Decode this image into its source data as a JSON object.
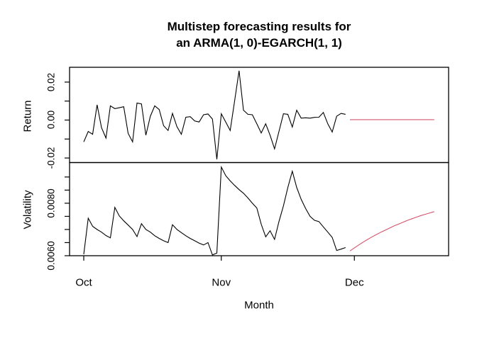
{
  "title": {
    "line1": "Multistep forecasting results for",
    "line2": "an ARMA(1, 0)-EGARCH(1, 1)"
  },
  "x_axis": {
    "label": "Month",
    "ticks": [
      {
        "label": "Oct",
        "day": 0
      },
      {
        "label": "Nov",
        "day": 31
      },
      {
        "label": "Dec",
        "day": 61
      }
    ]
  },
  "colors": {
    "observed": "#000000",
    "forecast": "#d5546c"
  },
  "chart_data": [
    {
      "type": "line",
      "panel": "return",
      "ylabel": "Return",
      "ylim": [
        -0.0224,
        0.0278
      ],
      "yticks": [
        -0.02,
        -0.01,
        0,
        0.01,
        0.02
      ],
      "ytick_labels": [
        "-0.02",
        "",
        "0.00",
        "",
        "0.02"
      ],
      "grid": false,
      "series": [
        {
          "name": "observed",
          "color_key": "observed",
          "x0": 0,
          "values": [
            -0.0115,
            -0.006,
            -0.0075,
            0.008,
            -0.004,
            -0.0095,
            0.0075,
            0.006,
            0.0065,
            0.007,
            -0.007,
            -0.0115,
            0.009,
            0.0085,
            -0.008,
            0.002,
            0.0075,
            0.0055,
            -0.003,
            -0.0055,
            0.0035,
            -0.0035,
            -0.0075,
            0.0015,
            0.0018,
            -0.0005,
            -0.001,
            0.0028,
            0.0032,
            0.0005,
            -0.0207,
            0.0033,
            -0.001,
            -0.0055,
            0.01,
            0.026,
            0.0052,
            0.003,
            0.0028,
            -0.002,
            -0.0068,
            -0.002,
            -0.008,
            -0.0152,
            -0.006,
            0.0033,
            0.003,
            -0.0037,
            0.0052,
            0.001,
            0.0012,
            0.001,
            0.0014,
            0.0015,
            0.004,
            -0.002,
            -0.0063,
            0.002,
            0.0035,
            0.003
          ]
        },
        {
          "name": "forecast",
          "color_key": "forecast",
          "x0": 60,
          "values": [
            0.0002,
            0.0002,
            0.0002,
            0.0002,
            0.0002,
            0.0002,
            0.0002,
            0.0002,
            0.0002,
            0.0002,
            0.0002,
            0.0002,
            0.0002,
            0.0002,
            0.0002,
            0.0002,
            0.0002,
            0.0002,
            0.0002,
            0.0002
          ]
        }
      ]
    },
    {
      "type": "line",
      "panel": "volatility",
      "ylabel": "Volatility",
      "ylim": [
        0.006,
        0.00955
      ],
      "yticks": [
        0.006,
        0.0065,
        0.007,
        0.0075,
        0.008,
        0.0085,
        0.009
      ],
      "ytick_labels": [
        "0.0060",
        "",
        "",
        "",
        "0.0080",
        "",
        ""
      ],
      "grid": false,
      "series": [
        {
          "name": "observed",
          "color_key": "observed",
          "x0": 0,
          "values": [
            0.00605,
            0.00743,
            0.00712,
            0.007,
            0.0069,
            0.00677,
            0.00668,
            0.00784,
            0.00752,
            0.00733,
            0.00717,
            0.007,
            0.00673,
            0.00722,
            0.007,
            0.0069,
            0.00676,
            0.00666,
            0.00657,
            0.0065,
            0.00718,
            0.007,
            0.00688,
            0.00676,
            0.00666,
            0.00657,
            0.00648,
            0.00641,
            0.0065,
            0.00603,
            0.0061,
            0.00938,
            0.00905,
            0.00885,
            0.00868,
            0.00852,
            0.00838,
            0.0082,
            0.008,
            0.00782,
            0.0072,
            0.00672,
            0.00695,
            0.00662,
            0.0073,
            0.0079,
            0.0086,
            0.00922,
            0.0086,
            0.00815,
            0.0078,
            0.0075,
            0.00735,
            0.0073,
            0.0071,
            0.0069,
            0.0067,
            0.0062,
            0.00625,
            0.00631
          ]
        },
        {
          "name": "forecast",
          "color_key": "forecast",
          "x0": 60,
          "values": [
            0.00618,
            0.0063,
            0.00641,
            0.00652,
            0.00662,
            0.00672,
            0.00681,
            0.0069,
            0.00698,
            0.00706,
            0.00714,
            0.00721,
            0.00728,
            0.00735,
            0.00741,
            0.00747,
            0.00753,
            0.00758,
            0.00763,
            0.00768
          ]
        }
      ]
    }
  ]
}
